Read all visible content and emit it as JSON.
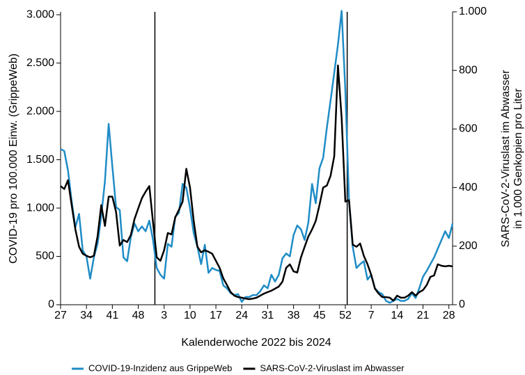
{
  "chart_data": {
    "type": "line",
    "xlabel": "Kalenderwoche 2022 bis 2024",
    "ylabel": "COVID-19 pro 100.000 Einw. (GrippeWeb)",
    "y2label": [
      "SARS-CoV-2-Viruslast im Abwasser",
      "in 1.000 Genkopien pro Liter"
    ],
    "categories": [
      "27",
      null,
      null,
      null,
      null,
      null,
      null,
      "34",
      null,
      null,
      null,
      null,
      null,
      null,
      "41",
      null,
      null,
      null,
      null,
      null,
      null,
      "48",
      null,
      null,
      null,
      null,
      null,
      null,
      "3",
      null,
      null,
      null,
      null,
      null,
      null,
      "10",
      null,
      null,
      null,
      null,
      null,
      null,
      "17",
      null,
      null,
      null,
      null,
      null,
      null,
      "24",
      null,
      null,
      null,
      null,
      null,
      null,
      "31",
      null,
      null,
      null,
      null,
      null,
      null,
      "38",
      null,
      null,
      null,
      null,
      null,
      null,
      "45",
      null,
      null,
      null,
      null,
      null,
      null,
      "52",
      null,
      null,
      null,
      null,
      null,
      null,
      "7",
      null,
      null,
      null,
      null,
      null,
      null,
      "14",
      null,
      null,
      null,
      null,
      null,
      null,
      "21",
      null,
      null,
      null,
      null,
      null,
      null,
      "28",
      null
    ],
    "series": [
      {
        "name": "COVID-19-Inzidenz aus GrippeWeb",
        "color": "#1f8cc6",
        "axis": "y",
        "values": [
          1610,
          1590,
          1390,
          1070,
          800,
          940,
          560,
          500,
          270,
          490,
          630,
          920,
          1280,
          1870,
          1430,
          1010,
          980,
          490,
          450,
          700,
          840,
          760,
          810,
          760,
          870,
          670,
          380,
          310,
          270,
          630,
          600,
          910,
          950,
          1250,
          1210,
          1000,
          740,
          600,
          420,
          620,
          330,
          380,
          360,
          350,
          200,
          170,
          120,
          100,
          110,
          30,
          80,
          80,
          100,
          100,
          140,
          200,
          170,
          310,
          240,
          310,
          480,
          530,
          500,
          720,
          820,
          780,
          670,
          850,
          1250,
          1050,
          1410,
          1520,
          1830,
          2110,
          2400,
          2690,
          3040,
          2220,
          1070,
          600,
          380,
          420,
          450,
          260,
          310,
          170,
          130,
          110,
          40,
          20,
          40,
          60,
          40,
          40,
          60,
          120,
          70,
          170,
          290,
          350,
          420,
          490,
          580,
          670,
          760,
          690,
          840
        ]
      },
      {
        "name": "SARS-CoV-2-Viruslast im Abwasser",
        "color": "#000000",
        "axis": "y2",
        "values": [
          405,
          395,
          425,
          340,
          257,
          198,
          174,
          167,
          162,
          167,
          233,
          340,
          269,
          369,
          369,
          317,
          202,
          221,
          214,
          238,
          293,
          329,
          364,
          386,
          405,
          281,
          162,
          150,
          186,
          245,
          240,
          298,
          324,
          352,
          464,
          400,
          286,
          198,
          179,
          186,
          181,
          174,
          150,
          126,
          90,
          67,
          43,
          31,
          26,
          24,
          21,
          19,
          21,
          24,
          31,
          38,
          43,
          48,
          55,
          62,
          79,
          126,
          138,
          114,
          110,
          162,
          198,
          233,
          257,
          286,
          340,
          400,
          407,
          440,
          507,
          817,
          638,
          352,
          357,
          205,
          198,
          209,
          167,
          138,
          102,
          55,
          38,
          26,
          26,
          24,
          14,
          31,
          24,
          24,
          31,
          43,
          31,
          43,
          50,
          67,
          95,
          100,
          138,
          133,
          131,
          133,
          131
        ]
      }
    ],
    "ylim": [
      0,
      3030
    ],
    "yticks": [
      0,
      500,
      {
        "value": 1000,
        "label": "1.000"
      },
      {
        "value": 1500,
        "label": "1.500"
      },
      {
        "value": 2000,
        "label": "2.000"
      },
      {
        "value": 2500,
        "label": "2.500"
      },
      {
        "value": 3000,
        "label": "3.000"
      }
    ],
    "y2lim": [
      0,
      1000
    ],
    "y2ticks": [
      0,
      200,
      400,
      600,
      800,
      {
        "value": 1000,
        "label": "1.000"
      }
    ],
    "legend": "bottom"
  }
}
